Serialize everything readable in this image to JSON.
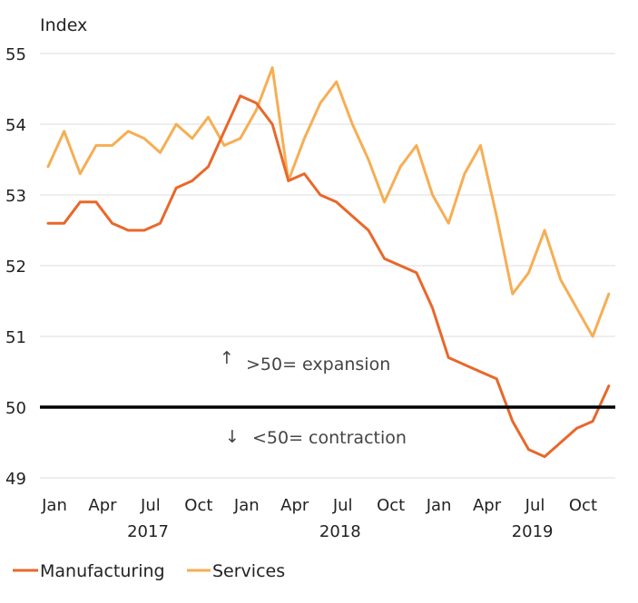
{
  "chart_data": {
    "type": "line",
    "y_unit_label": "Index",
    "ylim": [
      49,
      55
    ],
    "yticks": [
      49,
      50,
      51,
      52,
      53,
      54,
      55
    ],
    "grid": true,
    "x_tick_labels": [
      "Jan",
      "Apr",
      "Jul",
      "Oct",
      "Jan",
      "Apr",
      "Jul",
      "Oct",
      "Jan",
      "Apr",
      "Jul",
      "Oct"
    ],
    "year_labels": [
      "2017",
      "2018",
      "2019"
    ],
    "months": [
      "2017-01",
      "2017-02",
      "2017-03",
      "2017-04",
      "2017-05",
      "2017-06",
      "2017-07",
      "2017-08",
      "2017-09",
      "2017-10",
      "2017-11",
      "2017-12",
      "2018-01",
      "2018-02",
      "2018-03",
      "2018-04",
      "2018-05",
      "2018-06",
      "2018-07",
      "2018-08",
      "2018-09",
      "2018-10",
      "2018-11",
      "2018-12",
      "2019-01",
      "2019-02",
      "2019-03",
      "2019-04",
      "2019-05",
      "2019-06",
      "2019-07",
      "2019-08",
      "2019-09",
      "2019-10",
      "2019-11",
      "2019-12"
    ],
    "threshold": 50,
    "annotations": {
      "expansion_arrow": "↑",
      "expansion_text": ">50= expansion",
      "contraction_arrow": "↓",
      "contraction_text": "<50= contraction"
    },
    "series": [
      {
        "name": "Manufacturing",
        "color": "#E8682A",
        "values": [
          52.6,
          52.6,
          52.9,
          52.9,
          52.6,
          52.5,
          52.5,
          52.6,
          53.1,
          53.2,
          53.4,
          53.9,
          54.4,
          54.3,
          54.0,
          53.2,
          53.3,
          53.0,
          52.9,
          52.7,
          52.5,
          52.1,
          52.0,
          51.9,
          51.4,
          50.7,
          50.6,
          50.5,
          50.4,
          49.8,
          49.4,
          49.3,
          49.5,
          49.7,
          49.8,
          50.3
        ]
      },
      {
        "name": "Services",
        "color": "#F6AE54",
        "values": [
          53.4,
          53.9,
          53.3,
          53.7,
          53.7,
          53.9,
          53.8,
          53.6,
          54.0,
          53.8,
          54.1,
          53.7,
          53.8,
          54.2,
          54.8,
          53.2,
          53.8,
          54.3,
          54.6,
          54.0,
          53.5,
          52.9,
          53.4,
          53.7,
          53.0,
          52.6,
          53.3,
          53.7,
          52.7,
          51.6,
          51.9,
          52.5,
          51.8,
          51.4,
          51.0,
          51.6
        ]
      }
    ],
    "legend_position": "bottom-left"
  }
}
